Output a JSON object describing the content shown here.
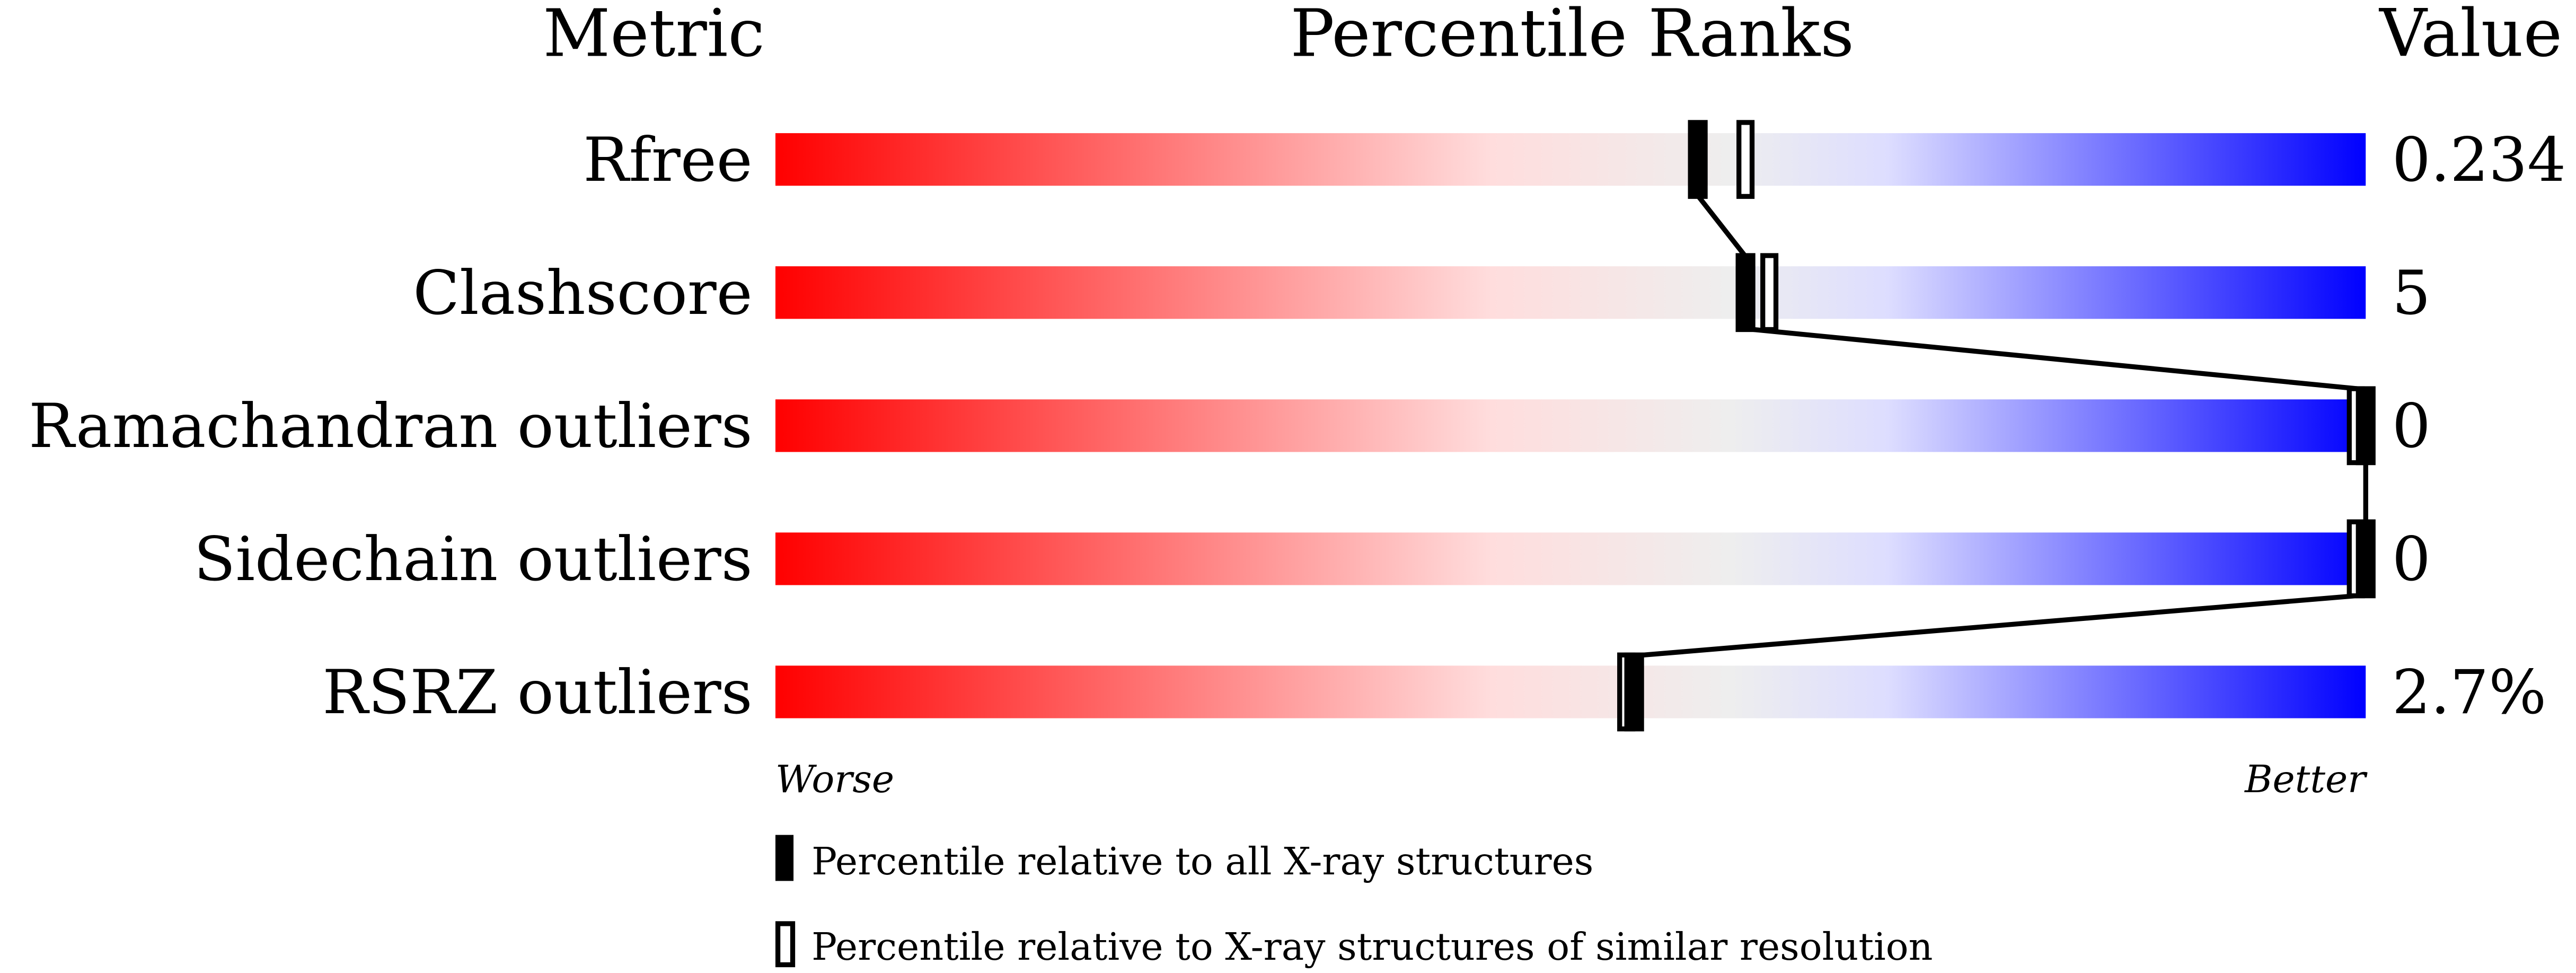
{
  "chart_data": {
    "type": "percentile-bar",
    "headers": {
      "metric": "Metric",
      "ranks": "Percentile Ranks",
      "value": "Value"
    },
    "xlim": [
      0,
      100
    ],
    "axis_labels": {
      "left": "Worse",
      "right": "Better"
    },
    "gradient_colors": [
      "#ff0000",
      "#ffdddd",
      "#eeeeee",
      "#ddddff",
      "#0000ff"
    ],
    "rows": [
      {
        "metric": "Rfree",
        "value": "0.234",
        "percentile_all": 58,
        "percentile_similar": 61
      },
      {
        "metric": "Clashscore",
        "value": "5",
        "percentile_all": 61,
        "percentile_similar": 62.5
      },
      {
        "metric": "Ramachandran outliers",
        "value": "0",
        "percentile_all": 100,
        "percentile_similar": 100
      },
      {
        "metric": "Sidechain outliers",
        "value": "0",
        "percentile_all": 100,
        "percentile_similar": 100
      },
      {
        "metric": "RSRZ outliers",
        "value": "2.7%",
        "percentile_all": 54,
        "percentile_similar": 53.5
      }
    ],
    "legend": [
      {
        "marker": "filled",
        "label": "Percentile relative to all X-ray structures"
      },
      {
        "marker": "open",
        "label": "Percentile relative to X-ray structures of similar resolution"
      }
    ]
  }
}
